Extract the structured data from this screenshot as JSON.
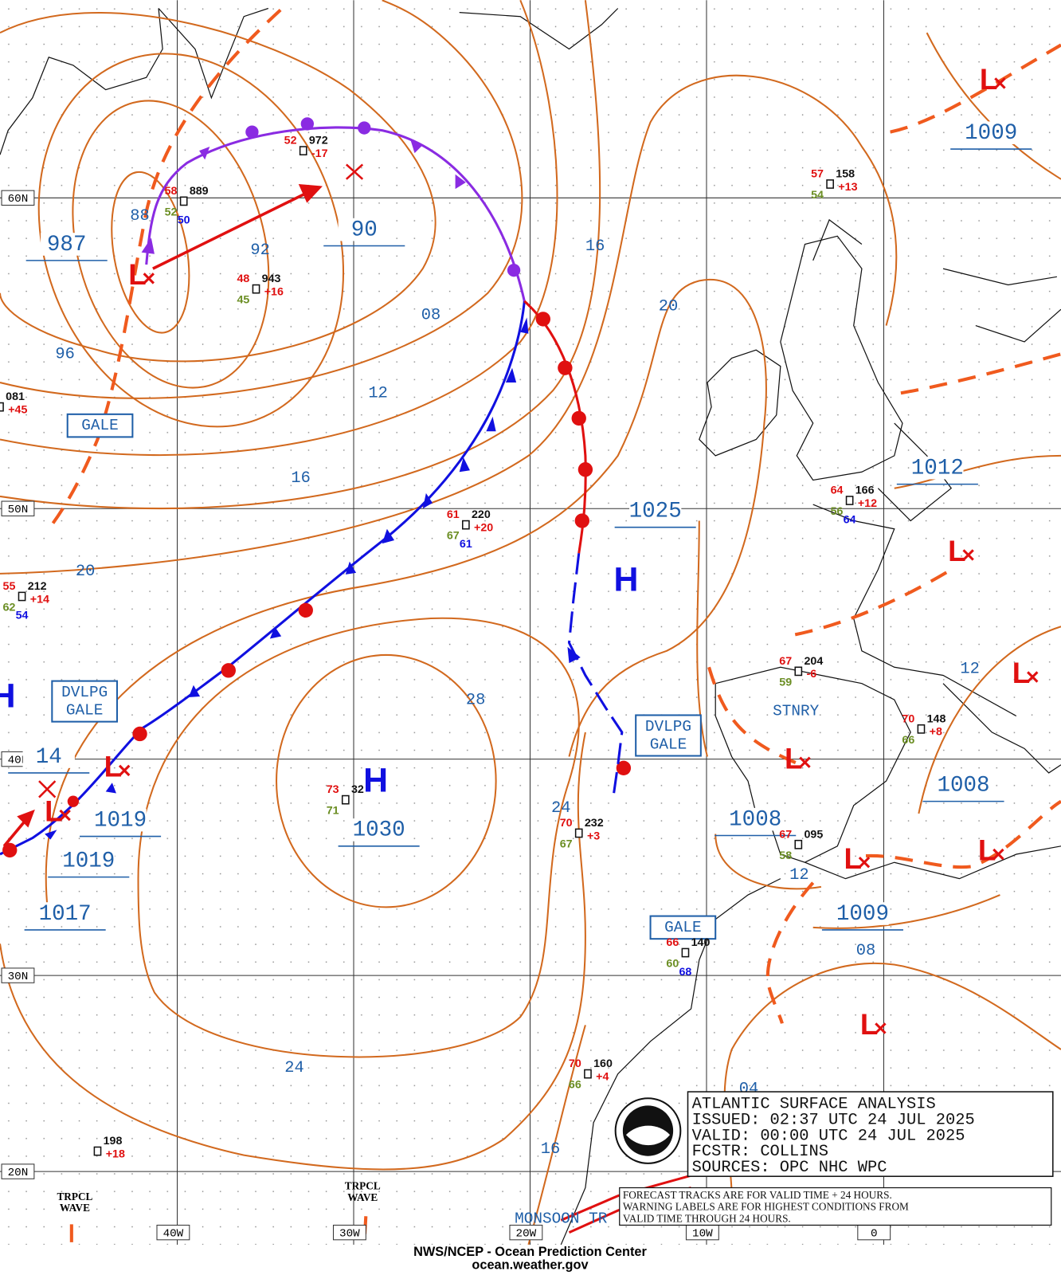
{
  "title_box": {
    "lines": [
      "ATLANTIC SURFACE ANALYSIS",
      "ISSUED: 02:37 UTC 24 JUL 2025",
      "VALID:  00:00 UTC 24 JUL 2025",
      "FCSTR:  COLLINS",
      "SOURCES: OPC NHC WPC"
    ]
  },
  "note": {
    "lines": [
      "FORECAST TRACKS ARE FOR VALID TIME + 24 HOURS.",
      "WARNING LABELS ARE FOR HIGHEST CONDITIONS FROM",
      "VALID TIME THROUGH 24 HOURS."
    ]
  },
  "footer": {
    "lines": [
      "NWS/NCEP - Ocean Prediction Center",
      "ocean.weather.gov"
    ]
  },
  "lat_labels": [
    "60N",
    "50N",
    "40N",
    "30N",
    "20N"
  ],
  "lon_labels": [
    "40W",
    "30W",
    "20W",
    "10W",
    "0"
  ],
  "pressure_centers": [
    "987",
    "90",
    "1025",
    "1030",
    "1019",
    "1019",
    "1017",
    "1012",
    "1009",
    "1008",
    "1008",
    "1009",
    "14"
  ],
  "isobar_labels": [
    "88",
    "92",
    "96",
    "08",
    "12",
    "16",
    "20",
    "16",
    "20",
    "28",
    "24",
    "24",
    "16",
    "12",
    "08",
    "04",
    "12"
  ],
  "highs": [
    "H",
    "H",
    "H"
  ],
  "lows": [
    "L",
    "L",
    "L",
    "L",
    "L",
    "L",
    "L",
    "L",
    "L",
    "L"
  ],
  "warnings": [
    {
      "lines": [
        "GALE"
      ]
    },
    {
      "lines": [
        "DVLPG",
        "GALE"
      ]
    },
    {
      "lines": [
        "DVLPG",
        "GALE"
      ]
    },
    {
      "lines": [
        "GALE"
      ]
    }
  ],
  "front_labels": [
    "STNRY"
  ],
  "waves": [
    {
      "lines": [
        "TRPCL",
        "WAVE"
      ]
    },
    {
      "lines": [
        "TRPCL",
        "WAVE"
      ]
    }
  ],
  "trough_label": "MONSOON TR",
  "stations": [
    {
      "pressure": "972",
      "temp": "52",
      "tend": "-17"
    },
    {
      "pressure": "889",
      "temp": "58",
      "dew": "52",
      "extra": "50"
    },
    {
      "pressure": "943",
      "temp": "48",
      "dew": "45",
      "tend": "+16"
    },
    {
      "pressure": "081",
      "tend": "+45"
    },
    {
      "pressure": "220",
      "temp": "61",
      "dew": "67",
      "extra": "61",
      "tend": "+20"
    },
    {
      "pressure": "212",
      "temp": "55",
      "dew": "62",
      "extra": "54",
      "tend": "+14"
    },
    {
      "pressure": "158",
      "temp": "57",
      "dew": "54",
      "tend": "+13"
    },
    {
      "pressure": "166",
      "temp": "64",
      "dew": "56",
      "extra": "64",
      "tend": "+12"
    },
    {
      "pressure": "204",
      "temp": "67",
      "dew": "59",
      "tend": "-6"
    },
    {
      "pressure": "148",
      "temp": "70",
      "dew": "66",
      "tend": "+8"
    },
    {
      "pressure": "232",
      "temp": "70",
      "dew": "67",
      "tend": "+3"
    },
    {
      "pressure": "095",
      "temp": "67",
      "dew": "58"
    },
    {
      "pressure": "140",
      "temp": "66",
      "dew": "60",
      "extra": "68"
    },
    {
      "pressure": "160",
      "temp": "70",
      "dew": "66",
      "tend": "+4"
    },
    {
      "pressure": "198",
      "tend": "+18"
    },
    {
      "pressure": "32",
      "temp": "73",
      "dew": "71"
    }
  ]
}
